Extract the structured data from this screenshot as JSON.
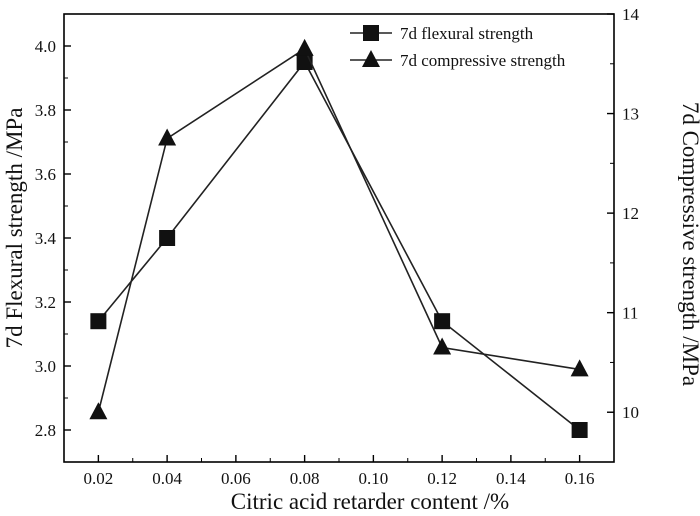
{
  "chart_data": {
    "type": "line",
    "title": "",
    "xlabel": "Citric acid retarder content /%",
    "ylabel_left": "7d Flexural strength /MPa",
    "ylabel_right": "7d Compressive strength /MPa",
    "xlim": [
      0.01,
      0.17
    ],
    "ylim_left": [
      2.7,
      4.1
    ],
    "ylim_right": [
      9.5,
      14
    ],
    "x_ticks": [
      "0.02",
      "0.04",
      "0.06",
      "0.08",
      "0.10",
      "0.12",
      "0.14",
      "0.16"
    ],
    "y_left_ticks": [
      "2.8",
      "3.0",
      "3.2",
      "3.4",
      "3.6",
      "3.8",
      "4.0"
    ],
    "y_right_ticks": [
      "10",
      "11",
      "12",
      "13",
      "14"
    ],
    "grid": false,
    "legend_position": "top-right",
    "series": [
      {
        "name": "7d flexural strength",
        "axis": "left",
        "marker": "square",
        "x": [
          0.02,
          0.04,
          0.08,
          0.12,
          0.16
        ],
        "y": [
          3.14,
          3.4,
          3.95,
          3.14,
          2.8
        ]
      },
      {
        "name": "7d compressive strength",
        "axis": "right",
        "marker": "triangle",
        "x": [
          0.02,
          0.04,
          0.08,
          0.12,
          0.16
        ],
        "y": [
          10.0,
          12.75,
          13.65,
          10.65,
          10.43
        ]
      }
    ],
    "colors": {
      "line": "#222222",
      "marker": "#111111",
      "axis": "#000000"
    }
  }
}
